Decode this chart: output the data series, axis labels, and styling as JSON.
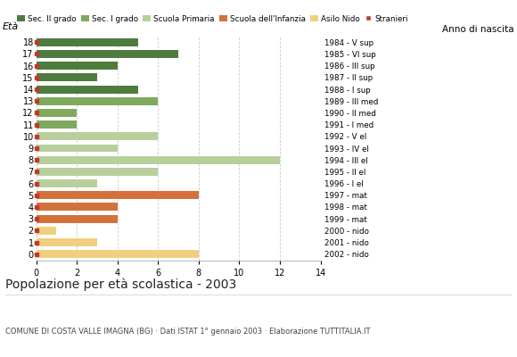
{
  "ages": [
    18,
    17,
    16,
    15,
    14,
    13,
    12,
    11,
    10,
    9,
    8,
    7,
    6,
    5,
    4,
    3,
    2,
    1,
    0
  ],
  "anno_nascita": [
    "1984 - V sup",
    "1985 - VI sup",
    "1986 - III sup",
    "1987 - II sup",
    "1988 - I sup",
    "1989 - III med",
    "1990 - II med",
    "1991 - I med",
    "1992 - V el",
    "1993 - IV el",
    "1994 - III el",
    "1995 - II el",
    "1996 - I el",
    "1997 - mat",
    "1998 - mat",
    "1999 - mat",
    "2000 - nido",
    "2001 - nido",
    "2002 - nido"
  ],
  "bar_values": [
    5,
    7,
    4,
    3,
    5,
    6,
    2,
    2,
    6,
    4,
    12,
    6,
    3,
    8,
    4,
    4,
    1,
    3,
    8
  ],
  "bar_colors": [
    "#4e7c3f",
    "#4e7c3f",
    "#4e7c3f",
    "#4e7c3f",
    "#4e7c3f",
    "#7faa5e",
    "#7faa5e",
    "#7faa5e",
    "#b8cf9b",
    "#b8cf9b",
    "#b8cf9b",
    "#b8cf9b",
    "#b8cf9b",
    "#d4713a",
    "#d4713a",
    "#d4713a",
    "#f0d080",
    "#f0d080",
    "#f0d080"
  ],
  "legend_labels": [
    "Sec. II grado",
    "Sec. I grado",
    "Scuola Primaria",
    "Scuola dell'Infanzia",
    "Asilo Nido",
    "Stranieri"
  ],
  "legend_colors": [
    "#4e7c3f",
    "#7faa5e",
    "#b8cf9b",
    "#d4713a",
    "#f0d080",
    "#c0392b"
  ],
  "title": "Popolazione per età scolastica - 2003",
  "subtitle": "COMUNE DI COSTA VALLE IMAGNA (BG) · Dati ISTAT 1° gennaio 2003 · Elaborazione TUTTITALIA.IT",
  "label_eta": "Età",
  "label_anno": "Anno di nascita",
  "xlim": [
    0,
    14
  ],
  "xticks": [
    0,
    2,
    4,
    6,
    8,
    10,
    12,
    14
  ],
  "bar_height": 0.68,
  "grid_color": "#cccccc",
  "bg_color": "#ffffff"
}
